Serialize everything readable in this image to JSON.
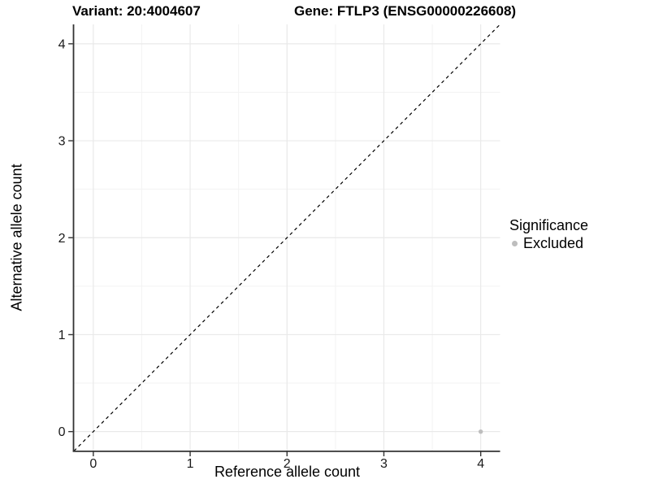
{
  "chart_data": {
    "type": "scatter",
    "title_left": "Variant: 20:4004607",
    "title_right": "Gene: FTLP3 (ENSG00000226608)",
    "xlabel": "Reference allele count",
    "ylabel": "Alternative allele count",
    "xlim": [
      -0.2,
      4.2
    ],
    "ylim": [
      -0.2,
      4.2
    ],
    "x_ticks": [
      0,
      1,
      2,
      3,
      4
    ],
    "y_ticks": [
      0,
      1,
      2,
      3,
      4
    ],
    "x_minor": [
      0.5,
      1.5,
      2.5,
      3.5
    ],
    "y_minor": [
      0.5,
      1.5,
      2.5,
      3.5
    ],
    "grid": true,
    "identity_line": {
      "style": "dashed",
      "from": [
        -0.2,
        -0.2
      ],
      "to": [
        4.2,
        4.2
      ]
    },
    "points": [
      {
        "x": 4,
        "y": 0,
        "series": "Excluded"
      }
    ],
    "legend": {
      "title": "Significance",
      "position": "right",
      "items": [
        {
          "label": "Excluded",
          "color": "#bebebe"
        }
      ]
    },
    "colors": {
      "point": "#bebebe",
      "grid_major": "#e9e9e9",
      "grid_minor": "#f3f3f3",
      "axis_line": "#333333",
      "tick": "#333333",
      "identity_line": "#000000",
      "background": "#ffffff"
    }
  }
}
